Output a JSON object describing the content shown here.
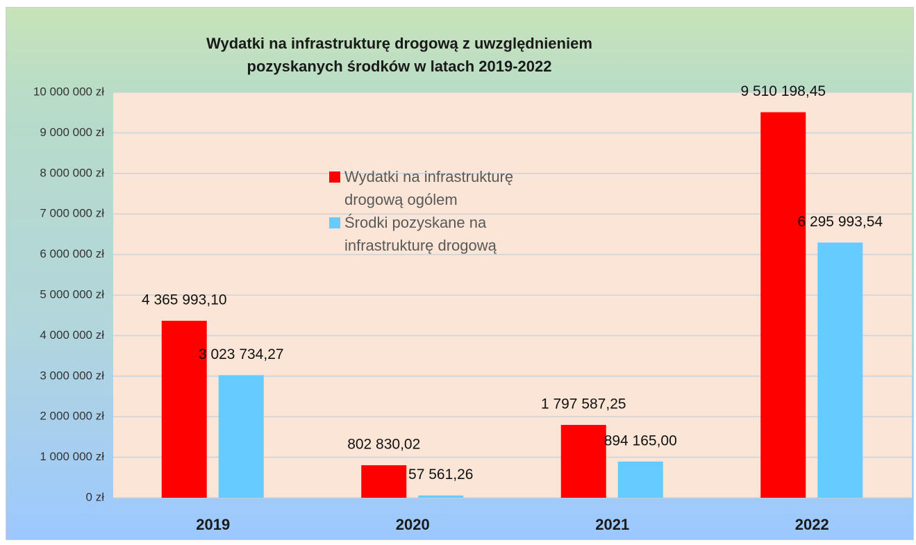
{
  "chart_data": {
    "type": "bar",
    "title": "Wydatki na infrastrukturę drogową z uwzględnieniem pozyskanych środków w latach 2019-2022",
    "categories": [
      "2019",
      "2020",
      "2021",
      "2022"
    ],
    "series": [
      {
        "name": "Wydatki na infrastrukturę drogową ogólem",
        "color": "#ff0000",
        "values": [
          4365993.1,
          802830.02,
          1797587.25,
          9510198.45
        ],
        "value_labels": [
          "4 365 993,10",
          "802 830,02",
          "1 797 587,25",
          "9 510 198,45"
        ]
      },
      {
        "name": "Środki pozyskane na infrastrukturę drogową",
        "color": "#66ccff",
        "values": [
          3023734.27,
          57561.26,
          894165.0,
          6295993.54
        ],
        "value_labels": [
          "3 023 734,27",
          "57 561,26",
          "894 165,00",
          "6 295 993,54"
        ]
      }
    ],
    "ylim": [
      0,
      10000000
    ],
    "yticks": [
      {
        "value": 0,
        "label": "0 zł"
      },
      {
        "value": 1000000,
        "label": "1 000 000 zł"
      },
      {
        "value": 2000000,
        "label": "2 000 000 zł"
      },
      {
        "value": 3000000,
        "label": "3 000 000 zł"
      },
      {
        "value": 4000000,
        "label": "4 000 000 zł"
      },
      {
        "value": 5000000,
        "label": "5 000 000 zł"
      },
      {
        "value": 6000000,
        "label": "6 000 000 zł"
      },
      {
        "value": 7000000,
        "label": "7 000 000 zł"
      },
      {
        "value": 8000000,
        "label": "8 000 000 zł"
      },
      {
        "value": 9000000,
        "label": "9 000 000 zł"
      },
      {
        "value": 10000000,
        "label": "10 000 000 zł"
      }
    ],
    "grid": true
  }
}
